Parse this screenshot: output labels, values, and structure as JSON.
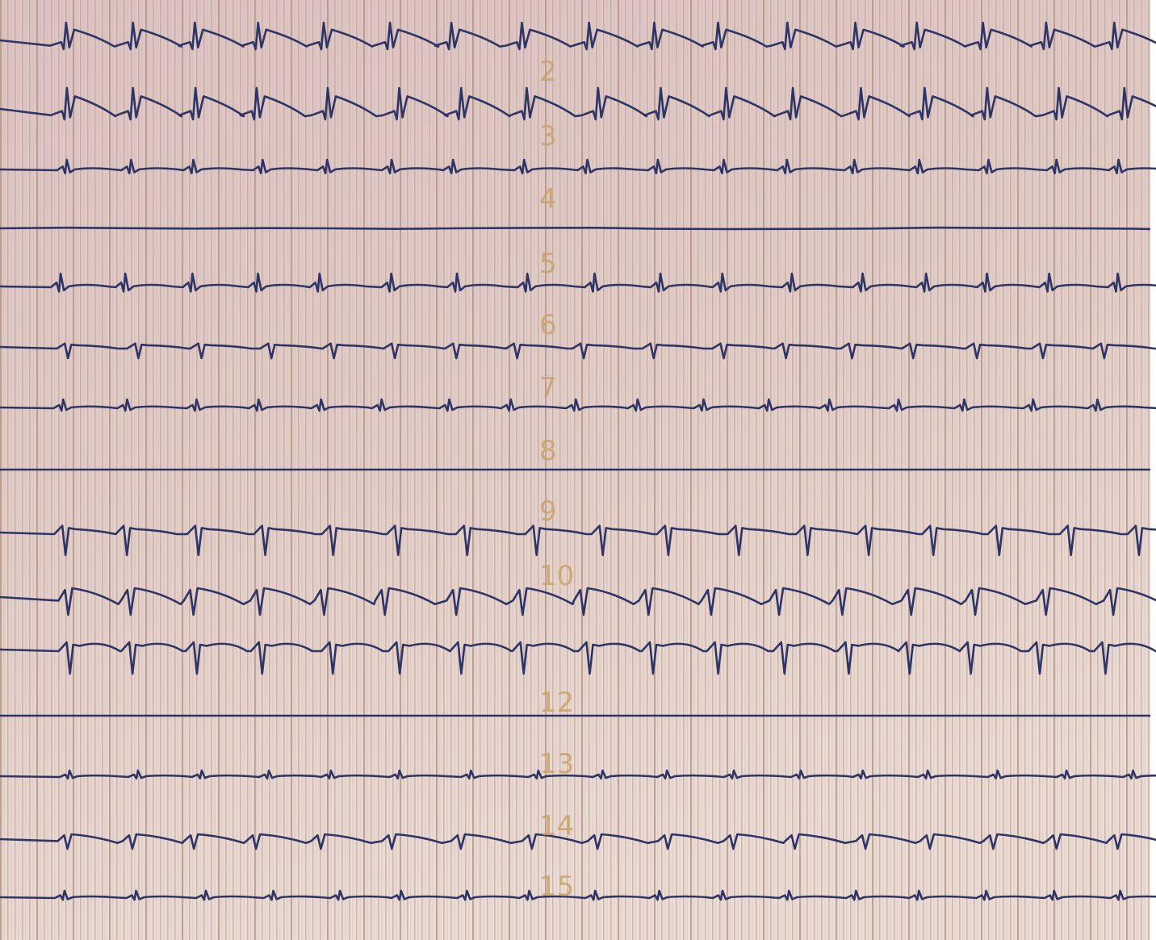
{
  "strip": {
    "channel_labels": [
      "2",
      "3",
      "4",
      "5",
      "6",
      "7",
      "8",
      "9",
      "10",
      "12",
      "13",
      "14",
      "15"
    ]
  }
}
